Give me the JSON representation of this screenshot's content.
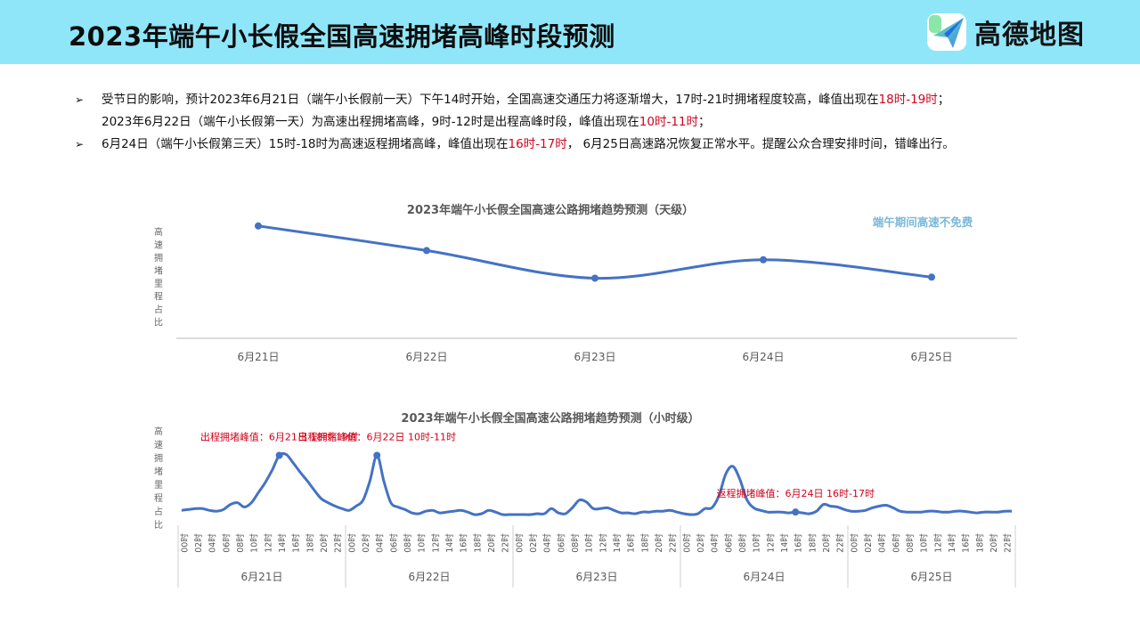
{
  "header": {
    "title": "2023年端午小长假全国高速拥堵高峰时段预测",
    "logo_text": "高德地图"
  },
  "colors": {
    "header_bg": "#8fe6f9",
    "line": "#4472c4",
    "highlight_red": "#d0021b",
    "note_blue": "#7bb7d9"
  },
  "bullets": [
    {
      "marker": "➢",
      "lines": [
        {
          "t1": "受节日的影响，预计2023年6月21日（端午小长假前一天）下午14时开始，全国高速交通压力将逐渐增大，17时-21时拥堵程度较高，峰值出现在",
          "hl": "18时-19时",
          "t2": "；"
        },
        {
          "t1": "2023年6月22日（端午小长假第一天）为高速出程拥堵高峰，9时-12时是出程高峰时段，峰值出现在",
          "hl": "10时-11时",
          "t2": "；"
        }
      ]
    },
    {
      "marker": "➢",
      "lines": [
        {
          "t1": "6月24日（端午小长假第三天）15时-18时为高速返程拥堵高峰，峰值出现在",
          "hl": "16时-17时",
          "t2": "， 6月25日高速路况恢复正常水平。提醒公众合理安排时间，错峰出行。"
        }
      ]
    }
  ],
  "chart_data": [
    {
      "type": "line",
      "title": "2023年端午小长假全国高速公路拥堵趋势预测（天级）",
      "ylabel": "高速拥堵里程占比",
      "annotation": "端午期间高速不免费",
      "categories": [
        "6月21日",
        "6月22日",
        "6月23日",
        "6月24日",
        "6月25日"
      ],
      "values": [
        0.88,
        0.64,
        0.37,
        0.55,
        0.38
      ],
      "ylim": [
        0,
        1
      ],
      "grid": false
    },
    {
      "type": "line",
      "title": "2023年端午小长假全国高速公路拥堵趋势预测（小时级）",
      "ylabel": "高速拥堵里程占比",
      "days": [
        "6月21日",
        "6月22日",
        "6月23日",
        "6月24日",
        "6月25日"
      ],
      "hour_labels": [
        "00时",
        "02时",
        "04时",
        "06时",
        "08时",
        "10时",
        "12时",
        "14时",
        "16时",
        "18时",
        "20时",
        "22时"
      ],
      "values": [
        0.05,
        0.06,
        0.07,
        0.07,
        0.05,
        0.04,
        0.06,
        0.12,
        0.14,
        0.09,
        0.14,
        0.26,
        0.38,
        0.53,
        0.7,
        0.71,
        0.61,
        0.5,
        0.4,
        0.29,
        0.19,
        0.14,
        0.1,
        0.07,
        0.05,
        0.1,
        0.17,
        0.4,
        0.7,
        0.39,
        0.14,
        0.09,
        0.06,
        0.02,
        0.01,
        0.04,
        0.05,
        0.02,
        0.03,
        0.04,
        0.05,
        0.03,
        0.0,
        0.01,
        0.05,
        0.03,
        0.0,
        0.0,
        0.0,
        0.0,
        0.0,
        0.01,
        0.01,
        0.07,
        0.02,
        0.01,
        0.08,
        0.17,
        0.15,
        0.07,
        0.07,
        0.08,
        0.05,
        0.02,
        0.02,
        0.01,
        0.03,
        0.03,
        0.04,
        0.04,
        0.05,
        0.03,
        0.01,
        0.0,
        0.01,
        0.07,
        0.08,
        0.22,
        0.48,
        0.57,
        0.42,
        0.18,
        0.08,
        0.05,
        0.03,
        0.03,
        0.03,
        0.02,
        0.03,
        0.02,
        0.01,
        0.04,
        0.12,
        0.1,
        0.09,
        0.06,
        0.04,
        0.04,
        0.05,
        0.08,
        0.1,
        0.11,
        0.08,
        0.04,
        0.03,
        0.03,
        0.03,
        0.04,
        0.04,
        0.03,
        0.03,
        0.04,
        0.04,
        0.03,
        0.02,
        0.03,
        0.03,
        0.03,
        0.04,
        0.04
      ],
      "annotations": [
        {
          "text": "出程拥堵峰值：6月21日 18时-19时",
          "index": 14
        },
        {
          "text": "出程拥堵峰值：6月22日 10时-11时",
          "index": 28
        },
        {
          "text": "返程拥堵峰值：6月24日 16时-17时",
          "index": 88
        }
      ]
    }
  ]
}
